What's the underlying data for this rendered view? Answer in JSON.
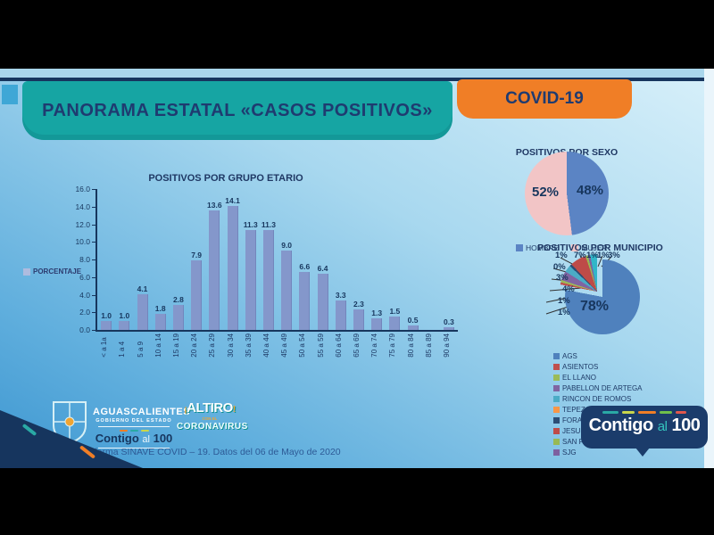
{
  "header": {
    "title": "PANORAMA ESTATAL «CASOS POSITIVOS»",
    "badge": "COVID-19"
  },
  "chart_data": [
    {
      "type": "bar",
      "title": "POSITIVOS POR GRUPO ETARIO",
      "legend": "PORCENTAJE",
      "ylabel": "",
      "ylim": [
        0,
        16
      ],
      "ytick_step": 2,
      "grid": false,
      "bar_color": "#8497CB",
      "categories": [
        "< a 1a",
        "1 a 4",
        "5 a 9",
        "10 a 14",
        "15 a 19",
        "20 a 24",
        "25 a 29",
        "30 a 34",
        "35 a 39",
        "40 a 44",
        "45 a 49",
        "50 a 54",
        "55 a 59",
        "60 a 64",
        "65 a 69",
        "70 a 74",
        "75 a 79",
        "80 a 84",
        "85 a 89",
        "90 a 94"
      ],
      "values": [
        1.0,
        1.0,
        4.1,
        1.8,
        2.8,
        7.9,
        13.6,
        14.1,
        11.3,
        11.3,
        9.0,
        6.6,
        6.4,
        3.3,
        2.3,
        1.3,
        1.5,
        0.5,
        0.0,
        0.3
      ],
      "value_labels": [
        "1.0",
        "1.0",
        "4.1",
        "1.8",
        "2.8",
        "7.9",
        "13.6",
        "14.1",
        "11.3",
        "11.3",
        "9.0",
        "6.6",
        "6.4",
        "3.3",
        "2.3",
        "1.3",
        "1.5",
        "0.5",
        "",
        "0.3"
      ]
    },
    {
      "type": "pie",
      "title": "POSITIVOS POR SEXO",
      "legend_position": "bottom",
      "slices": [
        {
          "name": "HOMBRE",
          "value": 48,
          "label": "48%",
          "color": "#5B84C4"
        },
        {
          "name": "MUJER",
          "value": 52,
          "label": "52%",
          "color": "#F2C5C6"
        }
      ]
    },
    {
      "type": "pie",
      "title": "POSITIVOS POR MUNICIPIO",
      "slices": [
        {
          "name": "AGS",
          "value": 78,
          "label": "78%",
          "color": "#4F81BD"
        },
        {
          "name": "ASIENTOS",
          "value": 1,
          "label": "1%",
          "color": "#C0504D"
        },
        {
          "name": "EL LLANO",
          "value": 1,
          "label": "1%",
          "color": "#9BBB59"
        },
        {
          "name": "PABELLON DE ARTEGA",
          "value": 4,
          "label": "4%",
          "color": "#8064A2"
        },
        {
          "name": "RINCON DE ROMOS",
          "value": 3,
          "label": "3%",
          "color": "#4BACC6"
        },
        {
          "name": "TEPEZALA",
          "value": 0,
          "label": "0%",
          "color": "#F79646"
        },
        {
          "name": "FORANEOS",
          "value": 1,
          "label": "1%",
          "color": "#2C4D75"
        },
        {
          "name": "JESUS MARIA",
          "value": 7,
          "label": "7%",
          "color": "#BE4B48"
        },
        {
          "name": "SAN FCO. DE LOS",
          "value": 1,
          "label": "1%",
          "color": "#98B954"
        },
        {
          "name": "SJG",
          "value": 1,
          "label": "1%",
          "color": "#7D60A0"
        },
        {
          "name": "",
          "value": 3,
          "label": "3%",
          "color": "#31B6C8"
        }
      ],
      "legend": [
        "AGS",
        "ASIENTOS",
        "EL LLANO",
        "PABELLON DE ARTEGA",
        "RINCON DE ROMOS",
        "TEPEZALA",
        "FORANEOS",
        "JESUS MARIA",
        "SAN FCO. DE LOS",
        "SJG"
      ],
      "legend_colors": [
        "#4F81BD",
        "#C0504D",
        "#9BBB59",
        "#8064A2",
        "#4BACC6",
        "#F79646",
        "#2C4D75",
        "#BE4B48",
        "#98B954",
        "#7D60A0"
      ]
    }
  ],
  "logos": {
    "state_name": "AGUASCALIENTES",
    "state_sub": "GOBIERNO DEL ESTADO",
    "contigo": "Contigo",
    "al": "al",
    "hundred": "100",
    "altiro_excl_l": "¡",
    "altiro_word": "ALTIRO",
    "altiro_excl_r": "!",
    "altiro_mid": "CON EL",
    "altiro_bottom": "CORONAVIRUS"
  },
  "footer": {
    "source": "FUENTE: Plataforma SINAVE COVID – 19. Datos del 06 de Mayo de 2020"
  },
  "colors": {
    "teal": "#16A5A3",
    "orange": "#F07E26",
    "navy": "#16355E",
    "bar": "#8497CB",
    "pie_blue": "#4F81BD",
    "pie_pink": "#F2C5C6"
  }
}
